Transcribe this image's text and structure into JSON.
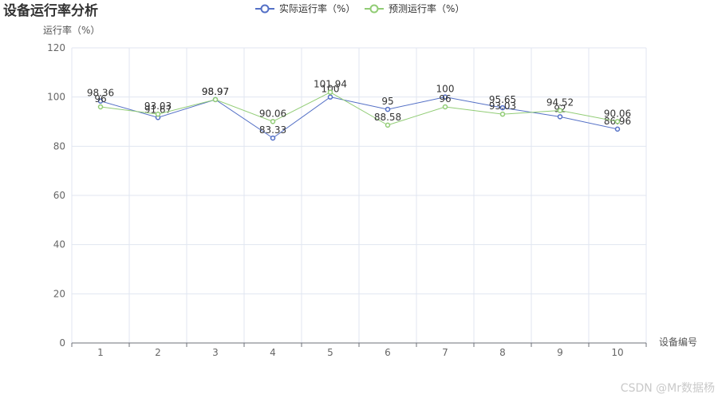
{
  "chart_data": {
    "type": "line",
    "title": "设备运行率分析",
    "xlabel": "设备编号",
    "ylabel": "运行率（%）",
    "categories": [
      "1",
      "2",
      "3",
      "4",
      "5",
      "6",
      "7",
      "8",
      "9",
      "10"
    ],
    "ylim": [
      0,
      120
    ],
    "yticks": [
      0,
      20,
      40,
      60,
      80,
      100,
      120
    ],
    "grid": true,
    "legend_position": "top-center",
    "series": [
      {
        "name": "实际运行率（%）",
        "color": "#5470c6",
        "values": [
          98.36,
          91.67,
          98.97,
          83.33,
          100,
          95,
          100,
          95.65,
          92,
          86.96
        ],
        "labels": [
          "98.36",
          "91.67",
          "98.97",
          "83.33",
          "100",
          "95",
          "100",
          "95.65",
          "92",
          "86.96"
        ]
      },
      {
        "name": "预测运行率（%）",
        "color": "#91cc75",
        "values": [
          96,
          93.03,
          98.97,
          90.06,
          101.94,
          88.58,
          96,
          93.03,
          94.52,
          90.06
        ],
        "labels": [
          "96",
          "93.03",
          "98.97",
          "90.06",
          "101.94",
          "88.58",
          "96",
          "93.03",
          "94.52",
          "90.06"
        ]
      }
    ]
  },
  "watermark": "CSDN @Mr数据杨"
}
